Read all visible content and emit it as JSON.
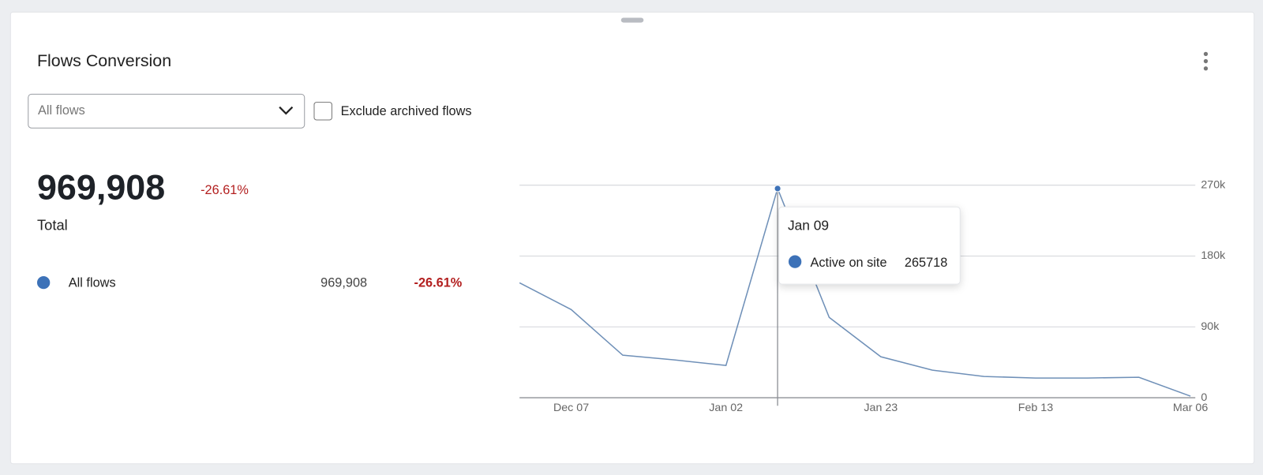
{
  "header": {
    "title": "Flows Conversion"
  },
  "controls": {
    "dropdown": "All flows",
    "checkbox_label": "Exclude archived flows"
  },
  "summary": {
    "total": "969,908",
    "change": "-26.61%",
    "total_label": "Total"
  },
  "legend_row": {
    "name": "All flows",
    "total": "969,908",
    "change": "-26.61%"
  },
  "chart_data": {
    "type": "line",
    "categories": [
      null,
      "Dec 07",
      null,
      null,
      "Jan 02",
      null,
      null,
      "Jan 23",
      null,
      null,
      "Feb 13",
      null,
      null,
      "Mar 06"
    ],
    "series": [
      {
        "name": "Active on site",
        "color": "#6f90b8",
        "values": [
          146000,
          112000,
          54000,
          48000,
          41000,
          265718,
          102000,
          52000,
          35000,
          27000,
          25000,
          25000,
          26000,
          2000
        ]
      }
    ],
    "ylim": [
      0,
      270000
    ],
    "yticks": [
      0,
      {
        "value": 90000,
        "label": "90k"
      },
      {
        "value": 180000,
        "label": "180k"
      },
      {
        "value": 270000,
        "label": "270k"
      }
    ],
    "grid": true,
    "tooltip": {
      "title": "Jan 09"
    }
  }
}
